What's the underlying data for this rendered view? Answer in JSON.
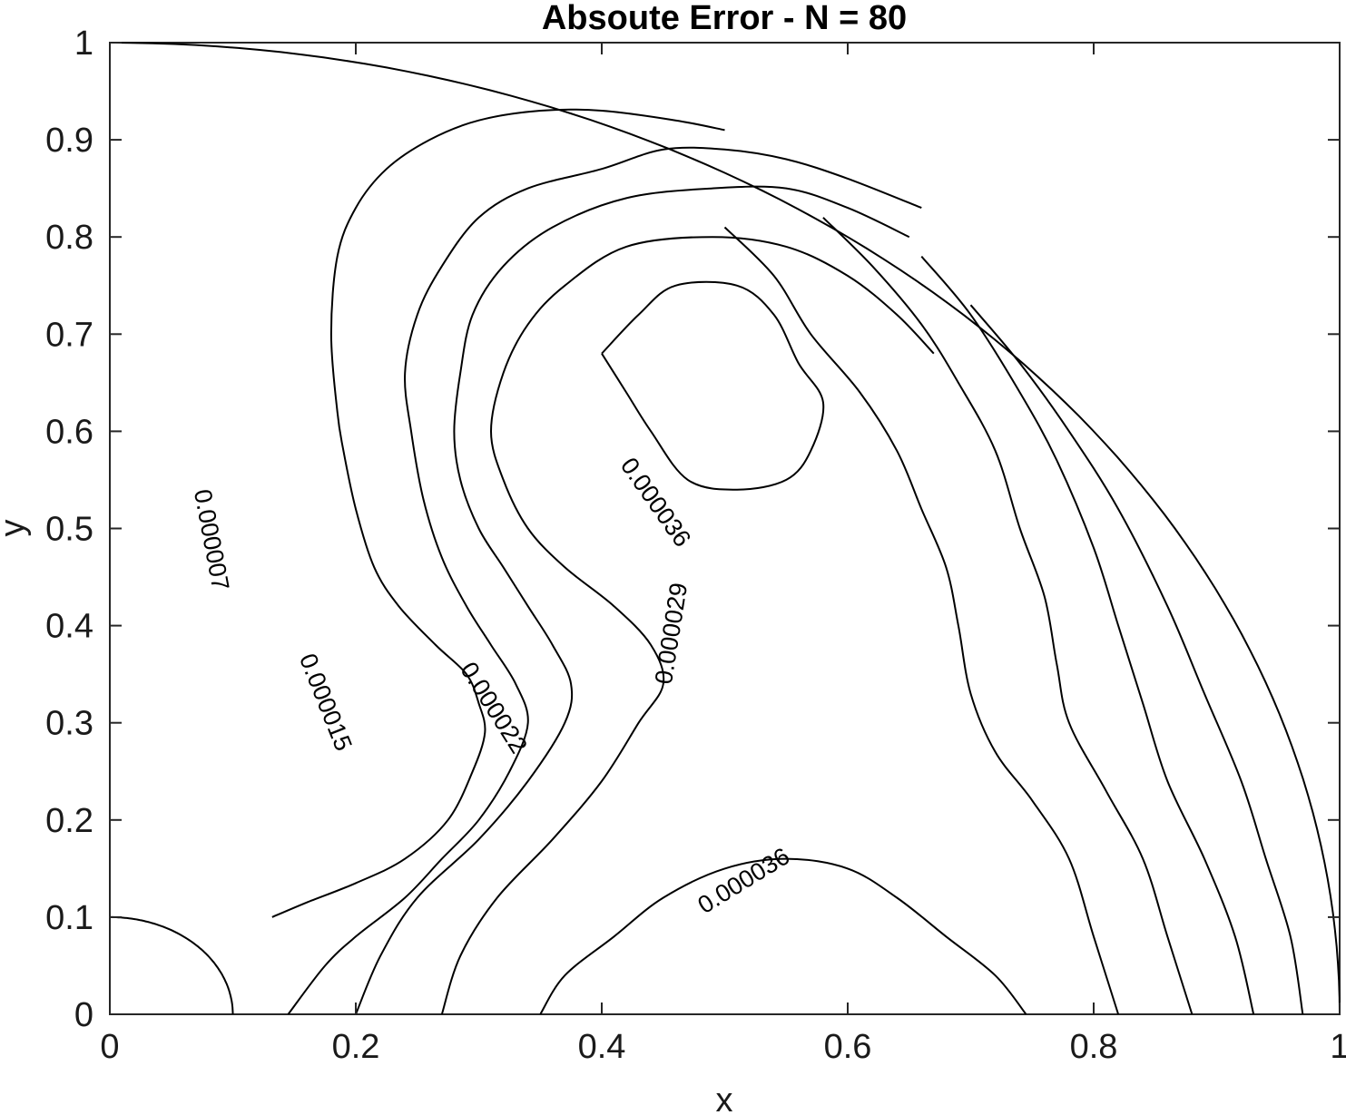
{
  "chart_data": {
    "type": "contour",
    "title": "Absoute Error - N = 80",
    "xlabel": "x",
    "ylabel": "y",
    "xlim": [
      0,
      1
    ],
    "ylim": [
      0,
      1
    ],
    "xticks": [
      "0",
      "0.2",
      "0.4",
      "0.6",
      "0.8",
      "1"
    ],
    "yticks": [
      "0",
      "0.1",
      "0.2",
      "0.3",
      "0.4",
      "0.5",
      "0.6",
      "0.7",
      "0.8",
      "0.9",
      "1"
    ],
    "grid": false,
    "domain_boundaries": [
      {
        "kind": "quarter-circle",
        "radius": 1
      },
      {
        "kind": "quarter-circle",
        "radius": 0.1
      }
    ],
    "contour_levels": [
      {
        "level": "0.000007",
        "label": "0.000007",
        "points": [
          [
            0.132,
            0.1
          ],
          [
            0.16,
            0.115
          ],
          [
            0.2,
            0.135
          ],
          [
            0.24,
            0.16
          ],
          [
            0.275,
            0.2
          ],
          [
            0.295,
            0.25
          ],
          [
            0.305,
            0.29
          ],
          [
            0.3,
            0.32
          ],
          [
            0.29,
            0.35
          ],
          [
            0.265,
            0.38
          ],
          [
            0.235,
            0.42
          ],
          [
            0.215,
            0.46
          ],
          [
            0.2,
            0.52
          ],
          [
            0.19,
            0.58
          ],
          [
            0.185,
            0.62
          ],
          [
            0.18,
            0.7
          ],
          [
            0.185,
            0.78
          ],
          [
            0.2,
            0.83
          ],
          [
            0.225,
            0.87
          ],
          [
            0.26,
            0.9
          ],
          [
            0.3,
            0.92
          ],
          [
            0.35,
            0.93
          ],
          [
            0.4,
            0.93
          ],
          [
            0.46,
            0.92
          ],
          [
            0.5,
            0.91
          ]
        ],
        "label_at": [
          0.075,
          0.54
        ]
      },
      {
        "level": "0.000015",
        "label": "0.000015",
        "points": [
          [
            0.145,
            0.0
          ],
          [
            0.175,
            0.05
          ],
          [
            0.2,
            0.08
          ],
          [
            0.24,
            0.12
          ],
          [
            0.27,
            0.16
          ],
          [
            0.3,
            0.2
          ],
          [
            0.325,
            0.25
          ],
          [
            0.34,
            0.3
          ],
          [
            0.33,
            0.34
          ],
          [
            0.31,
            0.38
          ],
          [
            0.29,
            0.42
          ],
          [
            0.27,
            0.47
          ],
          [
            0.255,
            0.53
          ],
          [
            0.245,
            0.6
          ],
          [
            0.24,
            0.66
          ],
          [
            0.25,
            0.72
          ],
          [
            0.27,
            0.77
          ],
          [
            0.3,
            0.82
          ],
          [
            0.34,
            0.85
          ],
          [
            0.4,
            0.87
          ],
          [
            0.45,
            0.89
          ],
          [
            0.5,
            0.89
          ],
          [
            0.55,
            0.88
          ],
          [
            0.6,
            0.86
          ],
          [
            0.66,
            0.83
          ]
        ],
        "label_at": [
          0.16,
          0.37
        ]
      },
      {
        "level": "0.000022",
        "label": "0.000022",
        "points": [
          [
            0.2,
            0.0
          ],
          [
            0.22,
            0.06
          ],
          [
            0.25,
            0.12
          ],
          [
            0.3,
            0.18
          ],
          [
            0.34,
            0.24
          ],
          [
            0.37,
            0.3
          ],
          [
            0.375,
            0.34
          ],
          [
            0.36,
            0.38
          ],
          [
            0.34,
            0.42
          ],
          [
            0.32,
            0.46
          ],
          [
            0.3,
            0.5
          ],
          [
            0.285,
            0.55
          ],
          [
            0.28,
            0.6
          ],
          [
            0.285,
            0.66
          ],
          [
            0.295,
            0.72
          ],
          [
            0.32,
            0.77
          ],
          [
            0.36,
            0.81
          ],
          [
            0.42,
            0.84
          ],
          [
            0.49,
            0.85
          ],
          [
            0.55,
            0.85
          ],
          [
            0.6,
            0.83
          ],
          [
            0.65,
            0.8
          ]
        ],
        "label_at": [
          0.29,
          0.36
        ]
      },
      {
        "level": "0.000029",
        "label": "0.000029",
        "points": [
          [
            0.27,
            0.0
          ],
          [
            0.285,
            0.06
          ],
          [
            0.315,
            0.12
          ],
          [
            0.36,
            0.18
          ],
          [
            0.4,
            0.24
          ],
          [
            0.43,
            0.3
          ],
          [
            0.45,
            0.34
          ],
          [
            0.44,
            0.38
          ],
          [
            0.41,
            0.42
          ],
          [
            0.37,
            0.46
          ],
          [
            0.34,
            0.5
          ],
          [
            0.32,
            0.55
          ],
          [
            0.31,
            0.6
          ],
          [
            0.32,
            0.66
          ],
          [
            0.34,
            0.71
          ],
          [
            0.37,
            0.75
          ],
          [
            0.42,
            0.79
          ],
          [
            0.49,
            0.8
          ],
          [
            0.55,
            0.79
          ],
          [
            0.6,
            0.76
          ],
          [
            0.64,
            0.72
          ],
          [
            0.67,
            0.68
          ]
        ],
        "label_at": [
          0.45,
          0.34
        ]
      },
      {
        "level": "0.000036",
        "label": "0.000036",
        "points": [
          [
            0.4,
            0.68
          ],
          [
            0.42,
            0.64
          ],
          [
            0.44,
            0.6
          ],
          [
            0.47,
            0.55
          ],
          [
            0.51,
            0.54
          ],
          [
            0.55,
            0.55
          ],
          [
            0.57,
            0.58
          ],
          [
            0.58,
            0.63
          ],
          [
            0.56,
            0.67
          ],
          [
            0.54,
            0.72
          ],
          [
            0.51,
            0.75
          ],
          [
            0.46,
            0.75
          ],
          [
            0.43,
            0.72
          ],
          [
            0.4,
            0.68
          ]
        ],
        "label_at": [
          0.42,
          0.57
        ]
      },
      {
        "level": "0.000036",
        "label": "0.000036",
        "points": [
          [
            0.35,
            0.0
          ],
          [
            0.37,
            0.04
          ],
          [
            0.41,
            0.08
          ],
          [
            0.45,
            0.12
          ],
          [
            0.5,
            0.15
          ],
          [
            0.55,
            0.16
          ],
          [
            0.6,
            0.15
          ],
          [
            0.64,
            0.12
          ],
          [
            0.68,
            0.08
          ],
          [
            0.72,
            0.04
          ],
          [
            0.745,
            0.0
          ]
        ],
        "label_at": [
          0.48,
          0.11
        ]
      },
      {
        "level": "0.000036",
        "label": "",
        "points": [
          [
            0.82,
            0.0
          ],
          [
            0.8,
            0.08
          ],
          [
            0.78,
            0.16
          ],
          [
            0.75,
            0.22
          ],
          [
            0.72,
            0.27
          ],
          [
            0.7,
            0.33
          ],
          [
            0.69,
            0.4
          ],
          [
            0.68,
            0.46
          ],
          [
            0.66,
            0.52
          ],
          [
            0.64,
            0.58
          ],
          [
            0.61,
            0.64
          ],
          [
            0.57,
            0.7
          ],
          [
            0.54,
            0.76
          ],
          [
            0.5,
            0.81
          ]
        ],
        "label_at": null
      },
      {
        "level": "0.000029",
        "label": "",
        "points": [
          [
            0.88,
            0.0
          ],
          [
            0.86,
            0.08
          ],
          [
            0.84,
            0.16
          ],
          [
            0.81,
            0.23
          ],
          [
            0.78,
            0.3
          ],
          [
            0.77,
            0.36
          ],
          [
            0.76,
            0.43
          ],
          [
            0.74,
            0.5
          ],
          [
            0.72,
            0.58
          ],
          [
            0.69,
            0.65
          ],
          [
            0.66,
            0.71
          ],
          [
            0.62,
            0.77
          ],
          [
            0.58,
            0.82
          ]
        ],
        "label_at": null
      },
      {
        "level": "0.000022",
        "label": "",
        "points": [
          [
            0.93,
            0.0
          ],
          [
            0.915,
            0.08
          ],
          [
            0.89,
            0.16
          ],
          [
            0.86,
            0.24
          ],
          [
            0.84,
            0.32
          ],
          [
            0.82,
            0.4
          ],
          [
            0.8,
            0.48
          ],
          [
            0.77,
            0.57
          ],
          [
            0.74,
            0.64
          ],
          [
            0.7,
            0.72
          ],
          [
            0.66,
            0.78
          ]
        ],
        "label_at": null
      },
      {
        "level": "0.000015",
        "label": "",
        "points": [
          [
            0.97,
            0.0
          ],
          [
            0.96,
            0.08
          ],
          [
            0.94,
            0.16
          ],
          [
            0.92,
            0.24
          ],
          [
            0.89,
            0.33
          ],
          [
            0.86,
            0.42
          ],
          [
            0.82,
            0.52
          ],
          [
            0.78,
            0.6
          ],
          [
            0.74,
            0.67
          ],
          [
            0.7,
            0.73
          ]
        ],
        "label_at": null
      }
    ]
  }
}
